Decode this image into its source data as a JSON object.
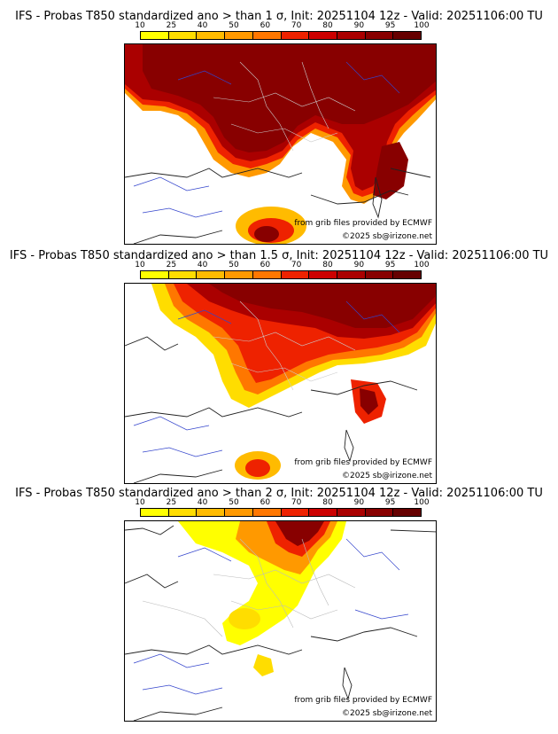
{
  "panels": [
    {
      "title": "IFS - Probas T850  standardized ano > than 1 σ, Init: 20251104 12z - Valid: 20251106:00 TU",
      "coverage": "high"
    },
    {
      "title": "IFS - Probas T850  standardized ano > than 1.5 σ, Init: 20251104 12z - Valid: 20251106:00 TU",
      "coverage": "medium"
    },
    {
      "title": "IFS - Probas T850  standardized ano > than 2 σ, Init: 20251104 12z - Valid: 20251106:00 TU",
      "coverage": "low"
    }
  ],
  "scale": {
    "labels": [
      "10",
      "25",
      "40",
      "50",
      "60",
      "70",
      "80",
      "90",
      "95",
      "100"
    ],
    "colors": [
      "#ffff00",
      "#ffdd00",
      "#ffbb00",
      "#ff9900",
      "#ff7700",
      "#ee2200",
      "#cc0000",
      "#aa0000",
      "#880000",
      "#660000"
    ]
  },
  "credits": {
    "source": "from grib files provided by ECMWF",
    "copyright": "©2025 sb@irizone.net"
  }
}
